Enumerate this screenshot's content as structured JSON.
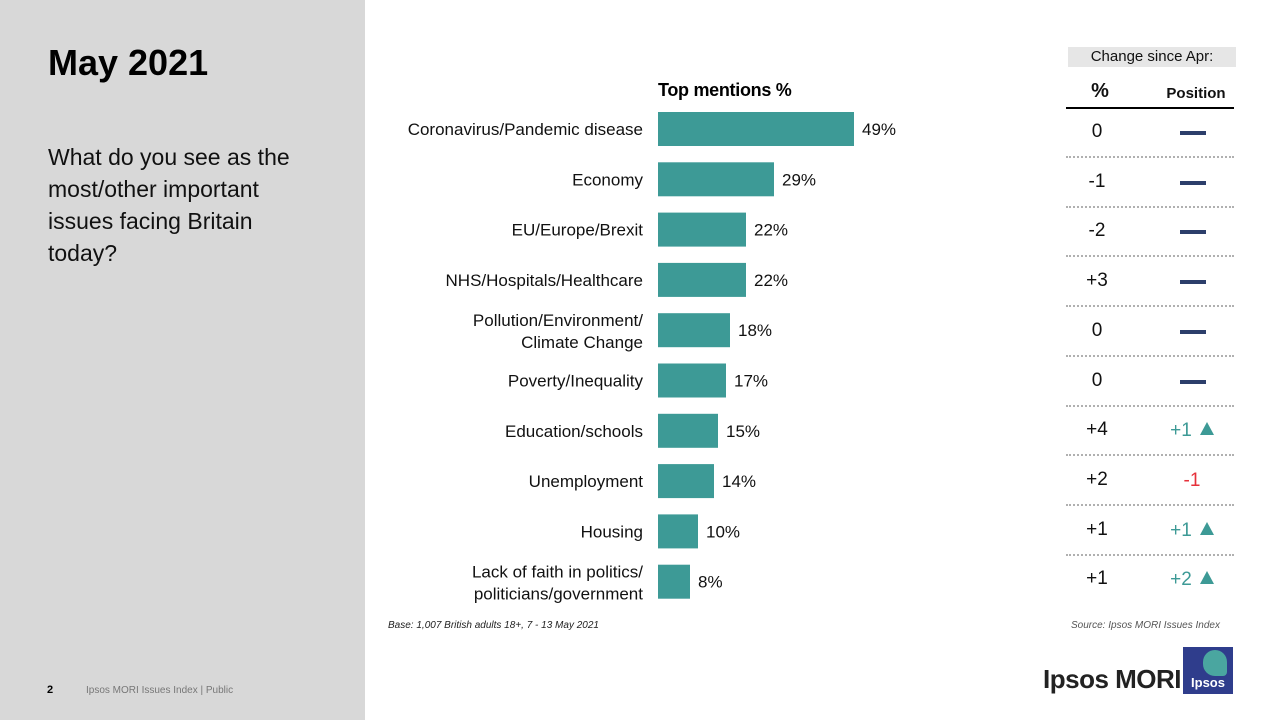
{
  "slide": {
    "title": "May 2021",
    "question": "What do you see as the most/other important issues facing Britain today?",
    "page_number": "2",
    "footer": "Ipsos MORI Issues Index | Public"
  },
  "chart_data": {
    "type": "bar",
    "orientation": "horizontal",
    "title": "Top mentions %",
    "categories": [
      "Coronavirus/Pandemic disease",
      "Economy",
      "EU/Europe/Brexit",
      "NHS/Hospitals/Healthcare",
      "Pollution/Environment/ Climate Change",
      "Poverty/Inequality",
      "Education/schools",
      "Unemployment",
      "Housing",
      "Lack of faith in politics/ politicians/government"
    ],
    "values": [
      49,
      29,
      22,
      22,
      18,
      17,
      15,
      14,
      10,
      8
    ],
    "value_labels": [
      "49%",
      "29%",
      "22%",
      "22%",
      "18%",
      "17%",
      "15%",
      "14%",
      "10%",
      "8%"
    ],
    "bar_color": "#3d9a96",
    "xlim": [
      0,
      100
    ]
  },
  "change": {
    "header": "Change since Apr:",
    "pct_header": "%",
    "position_header": "Position",
    "rows": [
      {
        "pct": "0",
        "position": "",
        "position_type": "same"
      },
      {
        "pct": "-1",
        "position": "",
        "position_type": "same"
      },
      {
        "pct": "-2",
        "position": "",
        "position_type": "same"
      },
      {
        "pct": "+3",
        "position": "",
        "position_type": "same"
      },
      {
        "pct": "0",
        "position": "",
        "position_type": "same"
      },
      {
        "pct": "0",
        "position": "",
        "position_type": "same"
      },
      {
        "pct": "+4",
        "position": "+1",
        "position_type": "up"
      },
      {
        "pct": "+2",
        "position": "-1",
        "position_type": "down"
      },
      {
        "pct": "+1",
        "position": "+1",
        "position_type": "up"
      },
      {
        "pct": "+1",
        "position": "+2",
        "position_type": "up"
      }
    ],
    "colors": {
      "same": "#2c3e6b",
      "up": "#3d9a96",
      "down": "#e6303a"
    }
  },
  "notes": {
    "base": "Base: 1,007 British adults 18+, 7 - 13 May 2021",
    "source": "Source: Ipsos MORI Issues Index"
  },
  "brand": {
    "name": "Ipsos MORI",
    "logo_text": "Ipsos"
  }
}
